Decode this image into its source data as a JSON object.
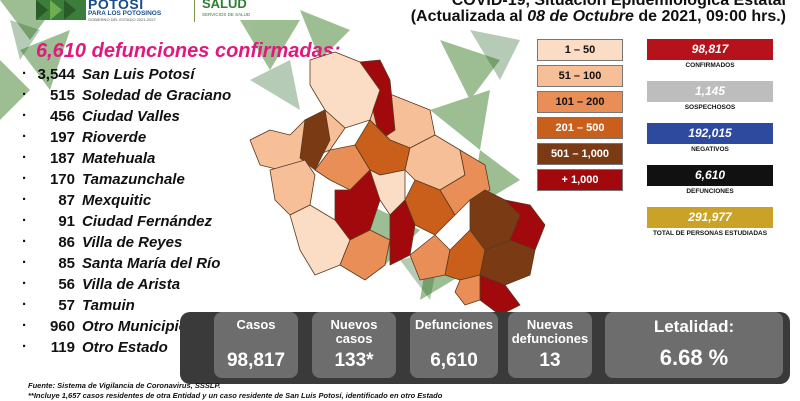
{
  "header": {
    "logo_title": "POTOSÍ",
    "logo_subtitle": "PARA LOS POTOSINOS",
    "logo_government": "GOBIERNO DEL ESTADO 2021-2027",
    "salud_title": "SALUD",
    "salud_subtitle": "SERVICIOS DE SALUD",
    "title": "COVID-19, Situación Epidemiológica Estatal",
    "subtitle_prefix": "(Actualizada al ",
    "subtitle_date": "08 de Octubre",
    "subtitle_suffix": " de 2021, 09:00 hrs.)"
  },
  "deaths_headline": "6,610 defunciones confirmadas:",
  "municipalities": [
    {
      "dot": "·",
      "count": "3,544",
      "name": "San Luis Potosí"
    },
    {
      "dot": "·",
      "count": "515",
      "name": "Soledad de Graciano"
    },
    {
      "dot": "·",
      "count": "456",
      "name": "Ciudad Valles"
    },
    {
      "dot": "·",
      "count": "197",
      "name": "Rioverde"
    },
    {
      "dot": "·",
      "count": "187",
      "name": "Matehuala"
    },
    {
      "dot": "·",
      "count": "170",
      "name": "Tamazunchale"
    },
    {
      "dot": "·",
      "count": "87",
      "name": "Mexquitic"
    },
    {
      "dot": "·",
      "count": "91",
      "name": "Ciudad Fernández"
    },
    {
      "dot": "·",
      "count": "86",
      "name": "Villa de Reyes"
    },
    {
      "dot": "·",
      "count": "85",
      "name": "Santa María del Río"
    },
    {
      "dot": "·",
      "count": "56",
      "name": "Villa de Arista"
    },
    {
      "dot": "·",
      "count": "57",
      "name": "Tamuin"
    },
    {
      "dot": "·",
      "count": "960",
      "name": "Otro Municipio"
    },
    {
      "dot": "·",
      "count": "119",
      "name": "Otro Estado"
    }
  ],
  "legend": [
    {
      "label": "1 – 50",
      "color": "#fbdcc4",
      "text_color": "#111111"
    },
    {
      "label": "51 – 100",
      "color": "#f6bf98",
      "text_color": "#111111"
    },
    {
      "label": "101 – 200",
      "color": "#ea8e57",
      "text_color": "#111111"
    },
    {
      "label": "201 – 500",
      "color": "#c95f1a",
      "text_color": "#ffffff"
    },
    {
      "label": "501 – 1,000",
      "color": "#7a3a14",
      "text_color": "#ffffff"
    },
    {
      "label": "+ 1,000",
      "color": "#a1090c",
      "text_color": "#ffffff"
    }
  ],
  "stats": [
    {
      "value": "98,817",
      "label": "CONFIRMADOS",
      "color": "#b5121b"
    },
    {
      "value": "1,145",
      "label": "SOSPECHOSOS",
      "color": "#bdbdbd"
    },
    {
      "value": "192,015",
      "label": "NEGATIVOS",
      "color": "#2e4a9e"
    },
    {
      "value": "6,610",
      "label": "DEFUNCIONES",
      "color": "#111111"
    },
    {
      "value": "291,977",
      "label": "TOTAL DE PERSONAS ESTUDIADAS",
      "color": "#c9a227"
    }
  ],
  "summary": {
    "casos_label": "Casos",
    "casos_value": "98,817",
    "nuevos_casos_label": "Nuevos casos",
    "nuevos_casos_value": "133*",
    "defunciones_label": "Defunciones",
    "defunciones_value": "6,610",
    "nuevas_defunciones_label": "Nuevas defunciones",
    "nuevas_defunciones_value": "13",
    "letalidad_label": "Letalidad:",
    "letalidad_value": "6.68 %"
  },
  "footer": {
    "source": "Fuente: Sistema de Vigilancia de Coronavirus, SSSLP.",
    "note": "**Incluye 1,657 casos residentes de otra Entidad y un caso residente de San Luis Potosí, identificado en otro Estado"
  },
  "colors": {
    "accent_pink": "#e0197d",
    "summary_dark": "#3a3a3a",
    "summary_box": "#6d6d6d",
    "pattern_green": "#4d8a3a"
  }
}
